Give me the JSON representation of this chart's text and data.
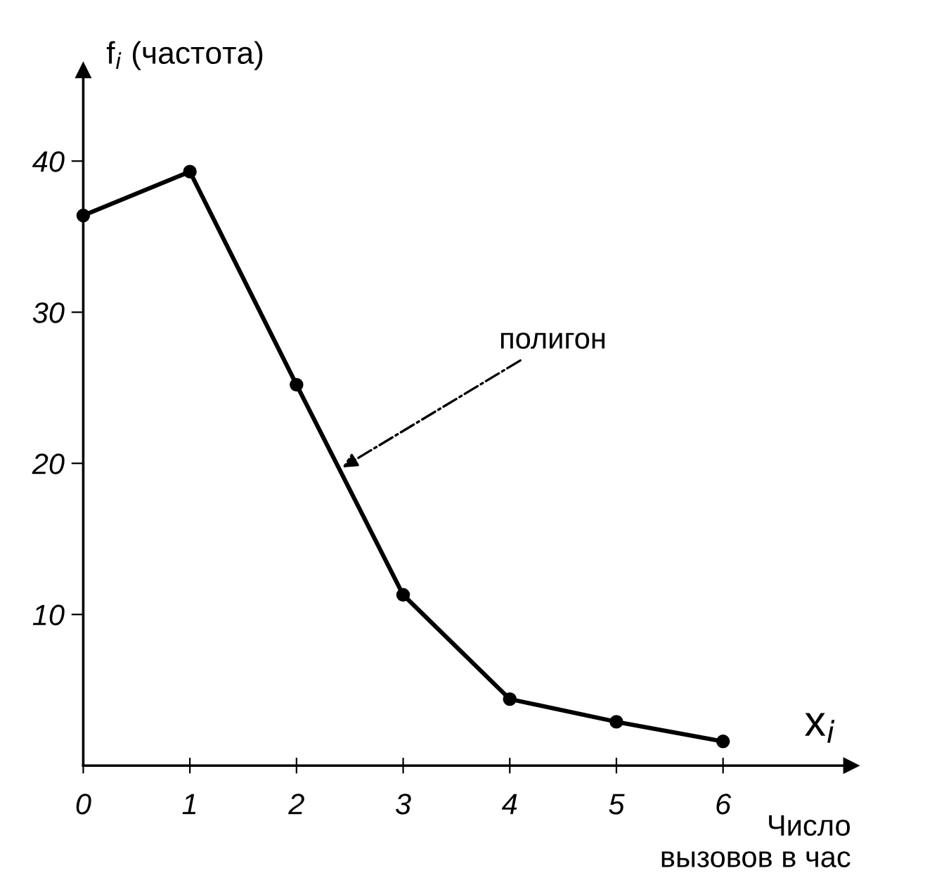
{
  "chart_data": {
    "type": "line",
    "ylabel": "f$_{i}$ (частота)",
    "xlabel": "x$_{i}$",
    "x": [
      0,
      1,
      2,
      3,
      4,
      5,
      6
    ],
    "series": [
      {
        "color": "#000000",
        "values": [
          36.4,
          39.3,
          25.2,
          11.3,
          4.4,
          2.9,
          1.6
        ]
      }
    ],
    "xlim": [
      0,
      7.2
    ],
    "ylim": [
      0,
      46
    ],
    "xticks": [
      0,
      1,
      2,
      3,
      4,
      5,
      6
    ],
    "yticks": [
      10,
      20,
      30,
      40
    ],
    "marker": "circle",
    "line_style": "solid",
    "grid": false,
    "legend": false,
    "annotations": [
      {
        "text": "полигон",
        "x": 2.4,
        "y": 19.6
      },
      "Число\nвызовов в час"
    ]
  }
}
